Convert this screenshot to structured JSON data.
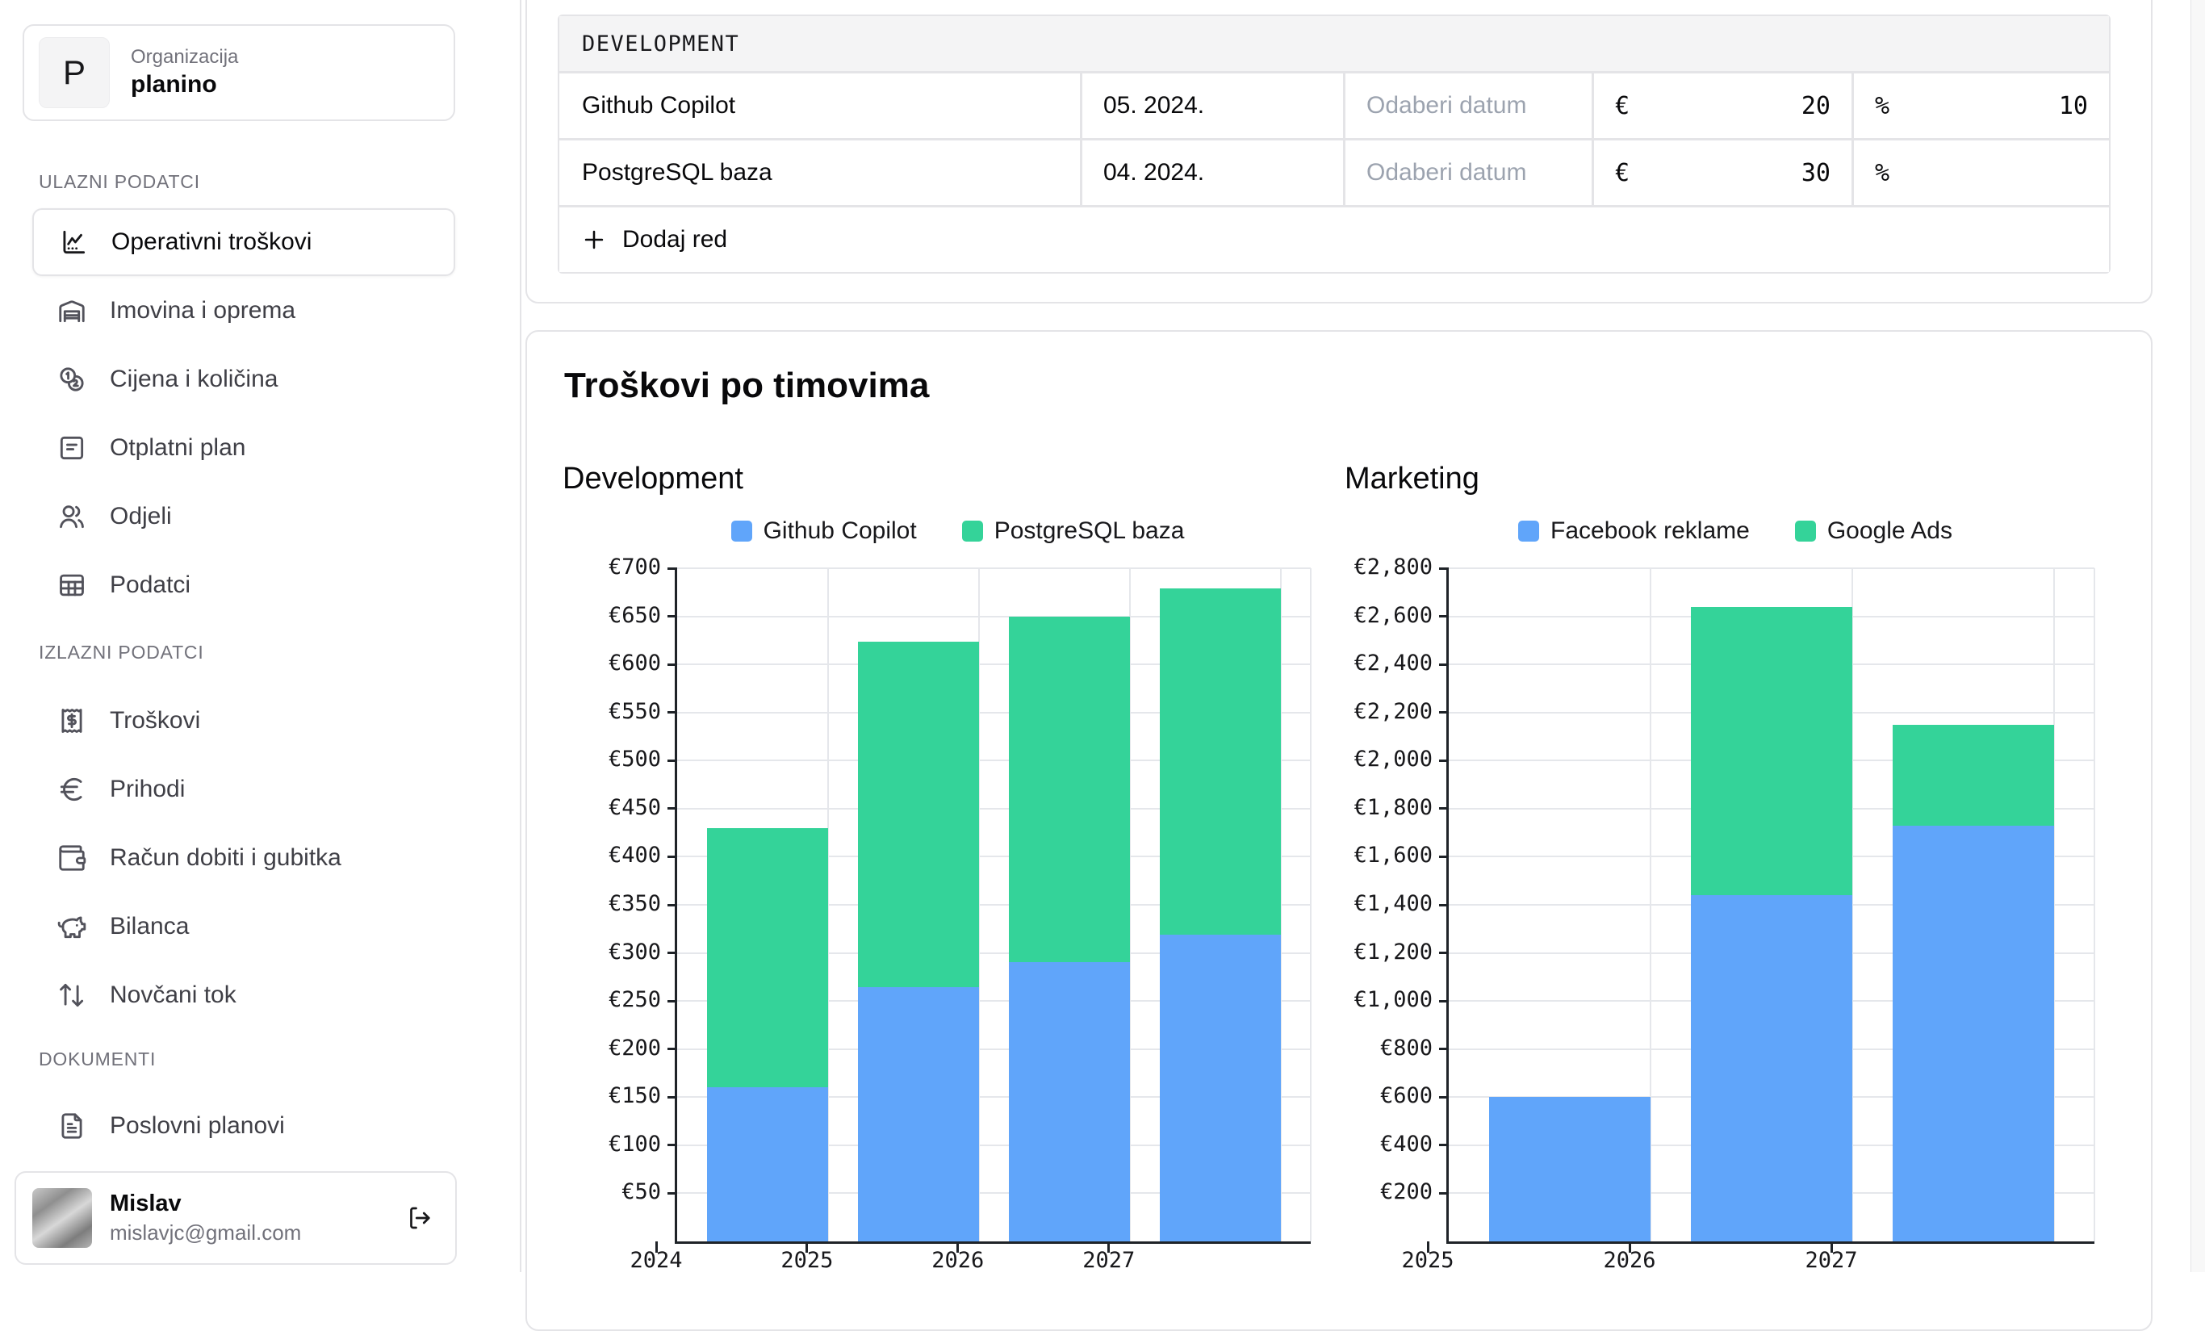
{
  "sidebar": {
    "org": {
      "initial": "P",
      "label": "Organizacija",
      "name": "planino"
    },
    "sections": [
      {
        "label": "ULAZNI PODATCI",
        "items": [
          {
            "icon": "chart",
            "label": "Operativni troškovi",
            "active": true
          },
          {
            "icon": "warehouse",
            "label": "Imovina i oprema",
            "active": false
          },
          {
            "icon": "coins",
            "label": "Cijena i količina",
            "active": false
          },
          {
            "icon": "plan",
            "label": "Otplatni plan",
            "active": false
          },
          {
            "icon": "users",
            "label": "Odjeli",
            "active": false
          },
          {
            "icon": "table",
            "label": "Podatci",
            "active": false
          }
        ]
      },
      {
        "label": "IZLAZNI PODATCI",
        "items": [
          {
            "icon": "receipt",
            "label": "Troškovi",
            "active": false
          },
          {
            "icon": "euro",
            "label": "Prihodi",
            "active": false
          },
          {
            "icon": "wallet",
            "label": "Račun dobiti i gubitka",
            "active": false
          },
          {
            "icon": "piggy",
            "label": "Bilanca",
            "active": false
          },
          {
            "icon": "updown",
            "label": "Novčani tok",
            "active": false
          }
        ]
      },
      {
        "label": "DOKUMENTI",
        "items": [
          {
            "icon": "file",
            "label": "Poslovni planovi",
            "active": false
          }
        ]
      }
    ],
    "user": {
      "name": "Mislav",
      "email": "mislavjc@gmail.com"
    }
  },
  "table": {
    "section_title": "DEVELOPMENT",
    "rows": [
      {
        "name": "Github Copilot",
        "start": "05. 2024.",
        "end_placeholder": "Odaberi datum",
        "currency": "€",
        "amount": "20",
        "unit": "%",
        "growth": "10"
      },
      {
        "name": "PostgreSQL baza",
        "start": "04. 2024.",
        "end_placeholder": "Odaberi datum",
        "currency": "€",
        "amount": "30",
        "unit": "%",
        "growth": ""
      }
    ],
    "add_row_label": "Dodaj red"
  },
  "charts_section": {
    "title": "Troškovi po timovima"
  },
  "chart_data": [
    {
      "type": "bar",
      "stacked": true,
      "title": "Development",
      "categories": [
        "2024",
        "2025",
        "2026",
        "2027"
      ],
      "series": [
        {
          "name": "Github Copilot",
          "color": "#60a5fa",
          "values": [
            160,
            264,
            290,
            319
          ]
        },
        {
          "name": "PostgreSQL baza",
          "color": "#34d399",
          "values": [
            270,
            360,
            360,
            360
          ]
        }
      ],
      "y_prefix": "€",
      "ylim": [
        0,
        700
      ],
      "ystep": 50,
      "grid": true,
      "legend_position": "top"
    },
    {
      "type": "bar",
      "stacked": true,
      "title": "Marketing",
      "categories": [
        "2025",
        "2026",
        "2027"
      ],
      "series": [
        {
          "name": "Facebook reklame",
          "color": "#60a5fa",
          "values": [
            600,
            1440,
            1728
          ]
        },
        {
          "name": "Google Ads",
          "color": "#34d399",
          "values": [
            0,
            1200,
            420
          ]
        }
      ],
      "y_prefix": "€",
      "ylim": [
        0,
        2800
      ],
      "ystep": 200,
      "grid": true,
      "legend_position": "top"
    }
  ]
}
